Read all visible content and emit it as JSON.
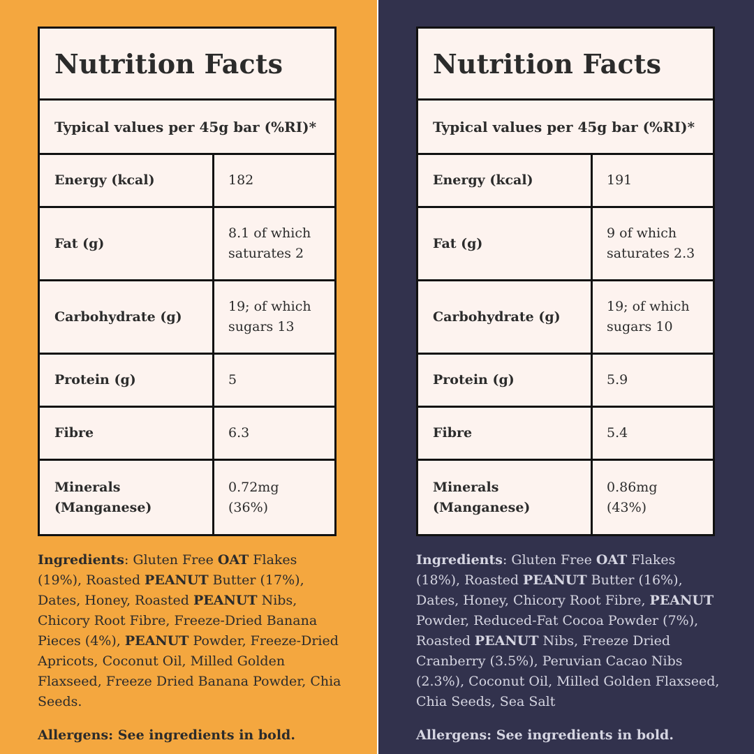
{
  "colors": {
    "left_background": "#f4a73f",
    "right_background": "#32324d",
    "table_background": "#fdf3ef",
    "border": "#111111"
  },
  "panels": [
    {
      "title": "Nutrition Facts",
      "subtitle": "Typical values per 45g bar (%RI)*",
      "rows": [
        {
          "label_lines": [
            "Energy (kcal)"
          ],
          "value_lines": [
            "182"
          ]
        },
        {
          "label_lines": [
            "Fat (g)"
          ],
          "value_lines": [
            "8.1 of which",
            "saturates 2"
          ]
        },
        {
          "label_lines": [
            "Carbohydrate (g)"
          ],
          "value_lines": [
            "19; of which",
            "sugars 13"
          ]
        },
        {
          "label_lines": [
            "Protein (g)"
          ],
          "value_lines": [
            "5"
          ]
        },
        {
          "label_lines": [
            "Fibre"
          ],
          "value_lines": [
            "6.3"
          ]
        },
        {
          "label_lines": [
            "Minerals",
            "(Manganese)"
          ],
          "value_lines": [
            "0.72mg",
            "(36%)"
          ]
        }
      ],
      "ingredients": [
        {
          "text": "Ingredients",
          "bold": true
        },
        {
          "text": ": Gluten Free ",
          "bold": false
        },
        {
          "text": "OAT",
          "bold": true
        },
        {
          "text": " Flakes (19%), Roasted ",
          "bold": false
        },
        {
          "text": "PEANUT",
          "bold": true
        },
        {
          "text": " Butter (17%), Dates, Honey, Roasted ",
          "bold": false
        },
        {
          "text": "PEANUT",
          "bold": true
        },
        {
          "text": " Nibs, Chicory Root Fibre, Freeze-Dried Banana Pieces (4%), ",
          "bold": false
        },
        {
          "text": "PEANUT",
          "bold": true
        },
        {
          "text": " Powder, Freeze-Dried Apricots, Coconut Oil, Milled Golden Flaxseed, Freeze Dried Banana Powder, Chia Seeds.",
          "bold": false
        }
      ],
      "allergens": "Allergens: See ingredients in bold."
    },
    {
      "title": "Nutrition Facts",
      "subtitle": "Typical values per 45g bar (%RI)*",
      "rows": [
        {
          "label_lines": [
            "Energy (kcal)"
          ],
          "value_lines": [
            "191"
          ]
        },
        {
          "label_lines": [
            "Fat (g)"
          ],
          "value_lines": [
            "9 of which",
            "saturates 2.3"
          ]
        },
        {
          "label_lines": [
            "Carbohydrate (g)"
          ],
          "value_lines": [
            "19; of which",
            "sugars 10"
          ]
        },
        {
          "label_lines": [
            "Protein (g)"
          ],
          "value_lines": [
            "5.9"
          ]
        },
        {
          "label_lines": [
            "Fibre"
          ],
          "value_lines": [
            "5.4"
          ]
        },
        {
          "label_lines": [
            "Minerals",
            "(Manganese)"
          ],
          "value_lines": [
            "0.86mg",
            "(43%)"
          ]
        }
      ],
      "ingredients": [
        {
          "text": "Ingredients",
          "bold": true
        },
        {
          "text": ": Gluten Free ",
          "bold": false
        },
        {
          "text": "OAT",
          "bold": true
        },
        {
          "text": " Flakes (18%), Roasted ",
          "bold": false
        },
        {
          "text": "PEANUT",
          "bold": true
        },
        {
          "text": " Butter (16%), Dates, Honey, Chicory Root Fibre, ",
          "bold": false
        },
        {
          "text": "PEANUT",
          "bold": true
        },
        {
          "text": " Powder, Reduced-Fat Cocoa Powder (7%), Roasted ",
          "bold": false
        },
        {
          "text": "PEANUT",
          "bold": true
        },
        {
          "text": " Nibs, Freeze Dried Cranberry (3.5%), Peruvian Cacao Nibs (2.3%), Coconut Oil, Milled Golden Flaxseed, Chia Seeds, Sea Salt",
          "bold": false
        }
      ],
      "allergens": "Allergens: See ingredients in bold."
    }
  ]
}
